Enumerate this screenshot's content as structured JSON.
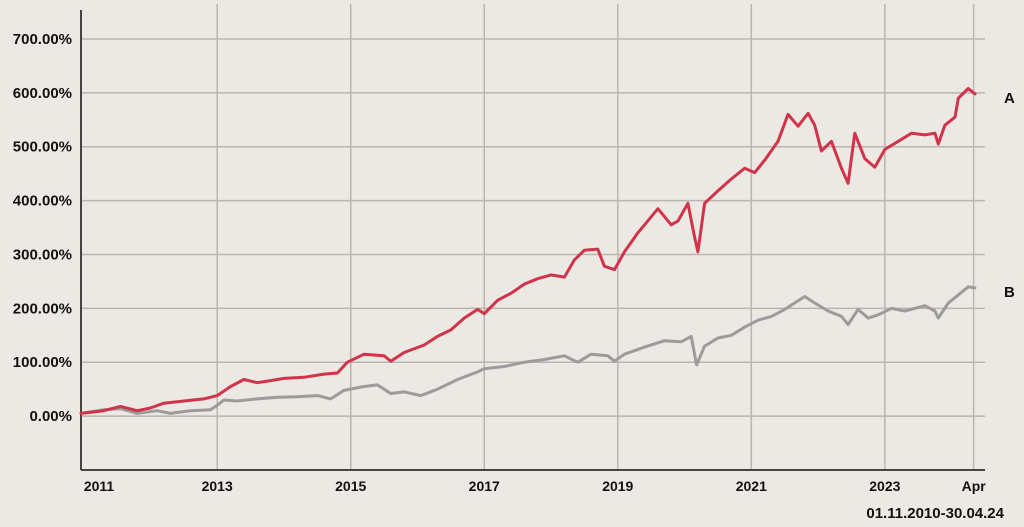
{
  "chart_data": {
    "type": "line",
    "date_range": "01.11.2010-30.04.24",
    "y_ticks": [
      "0.00%",
      "100.00%",
      "200.00%",
      "300.00%",
      "400.00%",
      "500.00%",
      "600.00%",
      "700.00%"
    ],
    "y_tick_values": [
      0,
      100,
      200,
      300,
      400,
      500,
      600,
      700
    ],
    "ylim": [
      -100,
      750
    ],
    "x_ticks": [
      "2011",
      "2013",
      "2015",
      "2017",
      "2019",
      "2021",
      "2023",
      "Apr"
    ],
    "x_tick_values": [
      2011,
      2013,
      2015,
      2017,
      2019,
      2021,
      2023,
      2024.33
    ],
    "xlim": [
      2010.96,
      2024.5
    ],
    "grid": true,
    "series": [
      {
        "name": "A",
        "color": "#d0344a",
        "points": [
          [
            2010.96,
            5
          ],
          [
            2011.3,
            10
          ],
          [
            2011.55,
            18
          ],
          [
            2011.8,
            10
          ],
          [
            2012.0,
            15
          ],
          [
            2012.2,
            24
          ],
          [
            2012.5,
            28
          ],
          [
            2012.8,
            32
          ],
          [
            2013.0,
            38
          ],
          [
            2013.2,
            55
          ],
          [
            2013.4,
            68
          ],
          [
            2013.6,
            62
          ],
          [
            2013.8,
            66
          ],
          [
            2014.0,
            70
          ],
          [
            2014.3,
            72
          ],
          [
            2014.6,
            78
          ],
          [
            2014.8,
            80
          ],
          [
            2014.95,
            100
          ],
          [
            2015.2,
            115
          ],
          [
            2015.5,
            112
          ],
          [
            2015.6,
            102
          ],
          [
            2015.8,
            118
          ],
          [
            2016.1,
            132
          ],
          [
            2016.3,
            148
          ],
          [
            2016.5,
            160
          ],
          [
            2016.7,
            182
          ],
          [
            2016.9,
            198
          ],
          [
            2017.0,
            190
          ],
          [
            2017.2,
            215
          ],
          [
            2017.4,
            228
          ],
          [
            2017.6,
            245
          ],
          [
            2017.8,
            255
          ],
          [
            2018.0,
            262
          ],
          [
            2018.2,
            258
          ],
          [
            2018.35,
            290
          ],
          [
            2018.5,
            308
          ],
          [
            2018.7,
            310
          ],
          [
            2018.8,
            278
          ],
          [
            2018.95,
            272
          ],
          [
            2019.1,
            305
          ],
          [
            2019.3,
            340
          ],
          [
            2019.5,
            370
          ],
          [
            2019.6,
            385
          ],
          [
            2019.8,
            355
          ],
          [
            2019.9,
            362
          ],
          [
            2020.05,
            395
          ],
          [
            2020.15,
            332
          ],
          [
            2020.2,
            305
          ],
          [
            2020.3,
            395
          ],
          [
            2020.5,
            418
          ],
          [
            2020.7,
            440
          ],
          [
            2020.9,
            460
          ],
          [
            2021.05,
            452
          ],
          [
            2021.2,
            475
          ],
          [
            2021.4,
            510
          ],
          [
            2021.55,
            560
          ],
          [
            2021.7,
            538
          ],
          [
            2021.85,
            562
          ],
          [
            2021.95,
            540
          ],
          [
            2022.05,
            492
          ],
          [
            2022.2,
            510
          ],
          [
            2022.35,
            460
          ],
          [
            2022.45,
            432
          ],
          [
            2022.55,
            525
          ],
          [
            2022.7,
            478
          ],
          [
            2022.85,
            462
          ],
          [
            2023.0,
            495
          ],
          [
            2023.2,
            510
          ],
          [
            2023.4,
            525
          ],
          [
            2023.6,
            522
          ],
          [
            2023.75,
            525
          ],
          [
            2023.8,
            505
          ],
          [
            2023.9,
            540
          ],
          [
            2024.05,
            555
          ],
          [
            2024.1,
            590
          ],
          [
            2024.25,
            608
          ],
          [
            2024.33,
            600
          ],
          [
            2024.35,
            598
          ]
        ]
      },
      {
        "name": "B",
        "color": "#9b9b9b",
        "points": [
          [
            2010.96,
            5
          ],
          [
            2011.3,
            12
          ],
          [
            2011.55,
            14
          ],
          [
            2011.8,
            5
          ],
          [
            2012.1,
            10
          ],
          [
            2012.3,
            5
          ],
          [
            2012.6,
            10
          ],
          [
            2012.9,
            12
          ],
          [
            2013.0,
            20
          ],
          [
            2013.1,
            30
          ],
          [
            2013.3,
            28
          ],
          [
            2013.6,
            32
          ],
          [
            2013.9,
            35
          ],
          [
            2014.2,
            36
          ],
          [
            2014.5,
            38
          ],
          [
            2014.7,
            32
          ],
          [
            2014.9,
            48
          ],
          [
            2015.2,
            55
          ],
          [
            2015.4,
            58
          ],
          [
            2015.6,
            42
          ],
          [
            2015.8,
            45
          ],
          [
            2016.05,
            38
          ],
          [
            2016.3,
            50
          ],
          [
            2016.6,
            68
          ],
          [
            2016.9,
            82
          ],
          [
            2017.0,
            88
          ],
          [
            2017.3,
            92
          ],
          [
            2017.6,
            100
          ],
          [
            2017.9,
            105
          ],
          [
            2018.2,
            112
          ],
          [
            2018.4,
            100
          ],
          [
            2018.6,
            115
          ],
          [
            2018.85,
            112
          ],
          [
            2018.95,
            102
          ],
          [
            2019.1,
            115
          ],
          [
            2019.4,
            128
          ],
          [
            2019.7,
            140
          ],
          [
            2019.95,
            138
          ],
          [
            2020.1,
            148
          ],
          [
            2020.18,
            95
          ],
          [
            2020.3,
            130
          ],
          [
            2020.5,
            145
          ],
          [
            2020.7,
            150
          ],
          [
            2020.9,
            165
          ],
          [
            2021.1,
            178
          ],
          [
            2021.3,
            185
          ],
          [
            2021.5,
            198
          ],
          [
            2021.8,
            222
          ],
          [
            2021.95,
            210
          ],
          [
            2022.15,
            195
          ],
          [
            2022.35,
            185
          ],
          [
            2022.45,
            170
          ],
          [
            2022.6,
            198
          ],
          [
            2022.75,
            182
          ],
          [
            2022.9,
            188
          ],
          [
            2023.1,
            200
          ],
          [
            2023.3,
            195
          ],
          [
            2023.6,
            205
          ],
          [
            2023.75,
            195
          ],
          [
            2023.8,
            182
          ],
          [
            2023.95,
            210
          ],
          [
            2024.1,
            225
          ],
          [
            2024.25,
            240
          ],
          [
            2024.35,
            238
          ]
        ]
      }
    ]
  }
}
